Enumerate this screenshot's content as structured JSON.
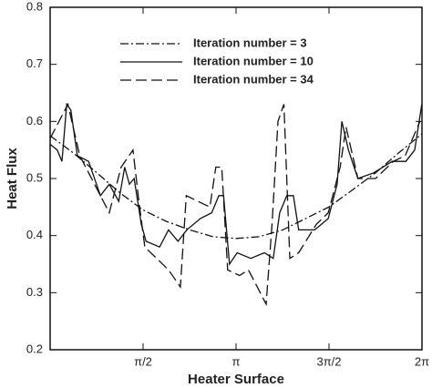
{
  "chart_data": {
    "type": "line",
    "x_label": "Heater Surface",
    "y_label": "Heat Flux",
    "xlim": [
      0,
      6.28319
    ],
    "ylim": [
      0.2,
      0.8
    ],
    "xticks": [
      {
        "value": 1.5708,
        "label": "π/2"
      },
      {
        "value": 3.14159,
        "label": "π"
      },
      {
        "value": 4.71239,
        "label": "3π/2"
      },
      {
        "value": 6.28319,
        "label": "2π"
      }
    ],
    "yticks": [
      0.2,
      0.3,
      0.4,
      0.5,
      0.6,
      0.7,
      0.8
    ],
    "legend": "upper center",
    "series": [
      {
        "name": "Iteration number = 3",
        "color": "#111",
        "line_style": "dash-dot",
        "x": [
          0,
          0.39,
          0.79,
          1.18,
          1.57,
          1.96,
          2.36,
          2.75,
          3.14,
          3.53,
          3.93,
          4.32,
          4.71,
          5.11,
          5.5,
          5.89,
          6.28
        ],
        "values": [
          0.575,
          0.545,
          0.51,
          0.475,
          0.445,
          0.425,
          0.41,
          0.398,
          0.395,
          0.398,
          0.41,
          0.43,
          0.45,
          0.48,
          0.51,
          0.545,
          0.578
        ]
      },
      {
        "name": "Iteration number = 10",
        "color": "#111",
        "line_style": "solid",
        "x": [
          0,
          0.12,
          0.2,
          0.28,
          0.35,
          0.46,
          0.65,
          0.85,
          1.0,
          1.16,
          1.26,
          1.34,
          1.42,
          1.54,
          1.62,
          1.85,
          2.0,
          2.16,
          2.31,
          2.54,
          2.73,
          2.85,
          2.93,
          3.03,
          3.16,
          3.39,
          3.62,
          3.77,
          3.88,
          4.0,
          4.11,
          4.2,
          4.47,
          4.7,
          4.85,
          4.93,
          5.04,
          5.2,
          5.47,
          5.78,
          6.01,
          6.16,
          6.28
        ],
        "values": [
          0.56,
          0.55,
          0.53,
          0.63,
          0.62,
          0.54,
          0.53,
          0.47,
          0.49,
          0.46,
          0.52,
          0.49,
          0.5,
          0.42,
          0.39,
          0.38,
          0.41,
          0.39,
          0.41,
          0.43,
          0.44,
          0.47,
          0.47,
          0.35,
          0.37,
          0.36,
          0.37,
          0.36,
          0.44,
          0.47,
          0.47,
          0.41,
          0.41,
          0.43,
          0.49,
          0.6,
          0.55,
          0.5,
          0.51,
          0.53,
          0.53,
          0.55,
          0.63
        ]
      },
      {
        "name": "Iteration number = 34",
        "color": "#111",
        "line_style": "dash",
        "x": [
          0,
          0.3,
          0.5,
          0.85,
          1.0,
          1.2,
          1.4,
          1.5,
          1.6,
          1.8,
          2.0,
          2.2,
          2.3,
          2.5,
          2.7,
          2.8,
          2.9,
          3.0,
          3.2,
          3.35,
          3.5,
          3.65,
          3.75,
          3.85,
          3.95,
          4.05,
          4.2,
          4.5,
          4.7,
          4.9,
          5.0,
          5.2,
          5.5,
          5.8,
          6.0,
          6.25
        ],
        "values": [
          0.57,
          0.63,
          0.54,
          0.47,
          0.44,
          0.52,
          0.55,
          0.46,
          0.38,
          0.36,
          0.34,
          0.31,
          0.47,
          0.46,
          0.45,
          0.52,
          0.52,
          0.34,
          0.33,
          0.34,
          0.31,
          0.28,
          0.42,
          0.6,
          0.63,
          0.36,
          0.37,
          0.42,
          0.44,
          0.52,
          0.59,
          0.5,
          0.5,
          0.53,
          0.54,
          0.6
        ]
      }
    ]
  }
}
